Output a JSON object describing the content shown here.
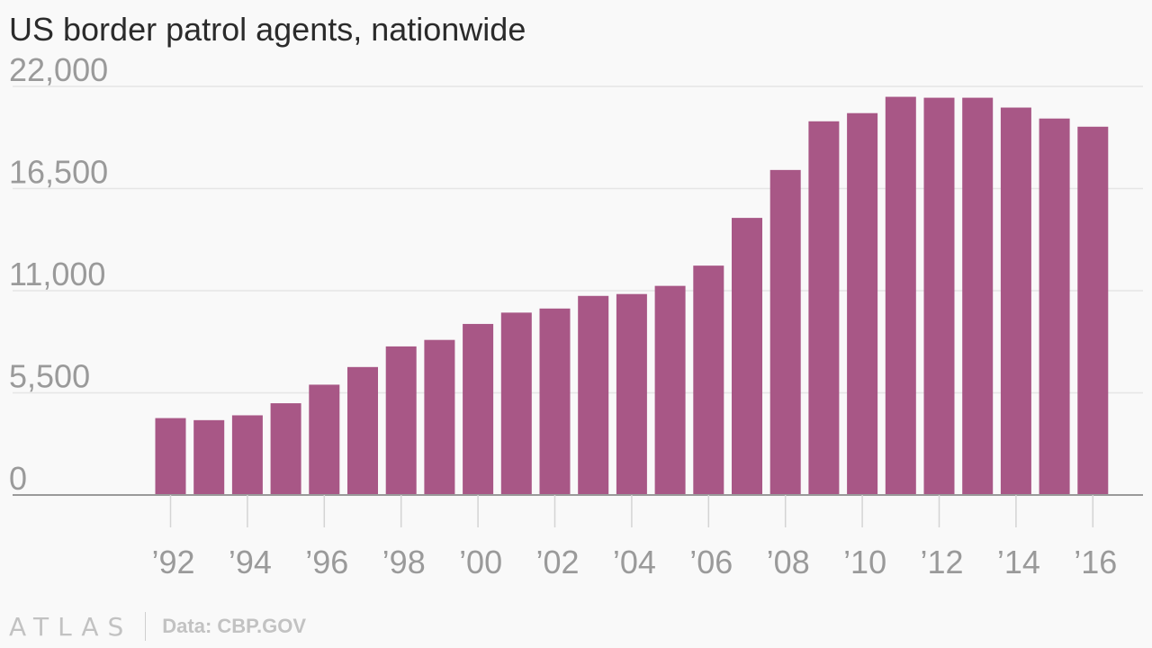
{
  "title": "US border patrol agents, nationwide",
  "footer": {
    "logo": "ATLAS",
    "source": "Data: CBP.GOV"
  },
  "colors": {
    "bar": "#a85786",
    "grid": "#e6e6e6",
    "axis": "#9a9a9a",
    "background": "#f9f9f9"
  },
  "chart_data": {
    "type": "bar",
    "title": "US border patrol agents, nationwide",
    "xlabel": "",
    "ylabel": "",
    "ylim": [
      0,
      22000
    ],
    "yticks": [
      0,
      5500,
      11000,
      16500,
      22000
    ],
    "ytick_labels": [
      "0",
      "5,500",
      "11,000",
      "16,500",
      "22,000"
    ],
    "xtick_labels": [
      "’92",
      "’94",
      "’96",
      "’98",
      "’00",
      "’02",
      "’04",
      "’06",
      "’08",
      "’10",
      "’12",
      "’14",
      "’16"
    ],
    "grid": true,
    "categories": [
      "1992",
      "1993",
      "1994",
      "1995",
      "1996",
      "1997",
      "1998",
      "1999",
      "2000",
      "2001",
      "2002",
      "2003",
      "2004",
      "2005",
      "2006",
      "2007",
      "2008",
      "2009",
      "2010",
      "2011",
      "2012",
      "2013",
      "2014",
      "2015",
      "2016"
    ],
    "values": [
      4140,
      4030,
      4290,
      4940,
      5940,
      6890,
      8000,
      8350,
      9210,
      9820,
      10040,
      10720,
      10820,
      11260,
      12350,
      14920,
      17500,
      20120,
      20560,
      21440,
      21390,
      21390,
      20860,
      20270,
      19830
    ]
  }
}
